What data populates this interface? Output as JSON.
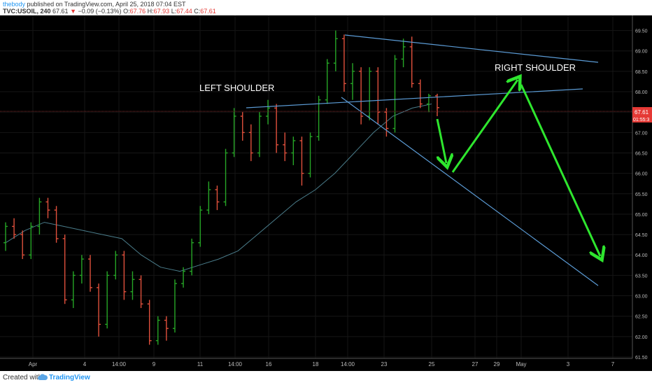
{
  "header": {
    "username": "thebody",
    "published_text": "published on TradingView.com, April 25, 2018 07:04 EST",
    "symbol_interval": "TVC:USOIL, 240",
    "last_price": "67.61",
    "change_arrow": "▼",
    "change_text": "−0.09 (−0.13%)",
    "open_label": "O:",
    "open": "67.76",
    "high_label": "H:",
    "high": "67.93",
    "low_label": "L:",
    "low": "67.44",
    "close_label": "C:",
    "close": "67.61"
  },
  "footer": {
    "created_with": "Created with",
    "brand": "TradingView",
    "brand_icon": "tradingview-cloud-icon"
  },
  "chart_data": {
    "type": "candlestick",
    "symbol": "TVC:USOIL",
    "interval": "240",
    "ylim": [
      61.5,
      69.75
    ],
    "y_ticks": [
      "61.50",
      "62.00",
      "62.50",
      "63.00",
      "63.50",
      "64.00",
      "64.50",
      "65.00",
      "65.50",
      "66.00",
      "66.50",
      "67.00",
      "67.50",
      "68.00",
      "68.50",
      "69.00",
      "69.50"
    ],
    "x_ticks": [
      "Apr",
      "4",
      "14:00",
      "9",
      "11",
      "14:00",
      "16",
      "18",
      "14:00",
      "23",
      "25",
      "27",
      "29",
      "May",
      "3",
      "7"
    ],
    "price_label": {
      "value": "67.61",
      "countdown": "01:55:3"
    },
    "annotations": [
      "LEFT SHOULDER",
      "RIGHT SHOULDER"
    ],
    "moving_average": [
      64.3,
      64.6,
      64.8,
      64.7,
      64.6,
      64.5,
      64.4,
      64.0,
      63.7,
      63.6,
      63.75,
      63.9,
      64.1,
      64.5,
      64.9,
      65.3,
      65.6,
      66.0,
      66.5,
      67.0,
      67.4,
      67.6,
      67.7
    ],
    "candles": [
      [
        64.3,
        64.8,
        64.1,
        64.7
      ],
      [
        64.7,
        64.9,
        64.4,
        64.5
      ],
      [
        64.5,
        64.6,
        63.9,
        64.0
      ],
      [
        64.0,
        64.8,
        63.9,
        64.7
      ],
      [
        64.7,
        65.4,
        64.5,
        65.3
      ],
      [
        65.3,
        65.4,
        64.9,
        65.1
      ],
      [
        65.1,
        65.2,
        64.3,
        64.4
      ],
      [
        64.4,
        64.5,
        62.8,
        62.9
      ],
      [
        62.9,
        63.6,
        62.7,
        63.5
      ],
      [
        63.5,
        64.0,
        63.3,
        63.9
      ],
      [
        63.9,
        64.0,
        63.1,
        63.2
      ],
      [
        63.2,
        63.3,
        62.0,
        62.3
      ],
      [
        62.3,
        63.6,
        62.2,
        63.5
      ],
      [
        63.5,
        64.1,
        63.4,
        64.0
      ],
      [
        64.0,
        64.1,
        62.9,
        63.1
      ],
      [
        63.1,
        63.6,
        62.9,
        63.4
      ],
      [
        63.4,
        63.5,
        62.7,
        62.8
      ],
      [
        62.8,
        62.9,
        61.8,
        61.9
      ],
      [
        61.9,
        62.5,
        61.8,
        62.4
      ],
      [
        62.4,
        62.5,
        61.9,
        62.2
      ],
      [
        62.2,
        63.4,
        62.1,
        63.3
      ],
      [
        63.3,
        63.7,
        63.2,
        63.6
      ],
      [
        63.6,
        64.4,
        63.5,
        64.3
      ],
      [
        64.3,
        65.2,
        64.2,
        65.1
      ],
      [
        65.1,
        65.8,
        65.0,
        65.6
      ],
      [
        65.6,
        65.7,
        65.1,
        65.3
      ],
      [
        65.3,
        66.6,
        65.2,
        66.5
      ],
      [
        66.5,
        67.6,
        66.4,
        67.4
      ],
      [
        67.4,
        67.5,
        66.8,
        67.0
      ],
      [
        67.0,
        67.2,
        66.3,
        66.5
      ],
      [
        66.5,
        67.5,
        66.4,
        67.4
      ],
      [
        67.4,
        67.8,
        67.2,
        67.6
      ],
      [
        67.6,
        67.7,
        66.5,
        66.7
      ],
      [
        66.7,
        67.0,
        66.3,
        66.5
      ],
      [
        66.5,
        66.9,
        66.2,
        66.8
      ],
      [
        66.8,
        66.9,
        65.7,
        66.0
      ],
      [
        66.0,
        67.0,
        65.9,
        66.9
      ],
      [
        66.9,
        67.9,
        66.8,
        67.8
      ],
      [
        67.8,
        68.8,
        67.7,
        68.7
      ],
      [
        68.7,
        69.5,
        68.5,
        69.3
      ],
      [
        69.3,
        69.4,
        68.0,
        68.2
      ],
      [
        68.2,
        68.7,
        67.8,
        68.5
      ],
      [
        68.5,
        68.6,
        67.2,
        67.4
      ],
      [
        67.4,
        68.6,
        67.3,
        68.5
      ],
      [
        68.5,
        68.6,
        67.2,
        67.5
      ],
      [
        67.5,
        67.6,
        66.9,
        67.1
      ],
      [
        67.1,
        68.9,
        67.0,
        68.8
      ],
      [
        68.8,
        69.3,
        68.6,
        69.1
      ],
      [
        69.1,
        69.35,
        68.1,
        68.2
      ],
      [
        68.2,
        68.3,
        67.6,
        67.7
      ],
      [
        67.7,
        67.95,
        67.5,
        67.9
      ],
      [
        67.9,
        67.95,
        67.4,
        67.61
      ]
    ]
  }
}
